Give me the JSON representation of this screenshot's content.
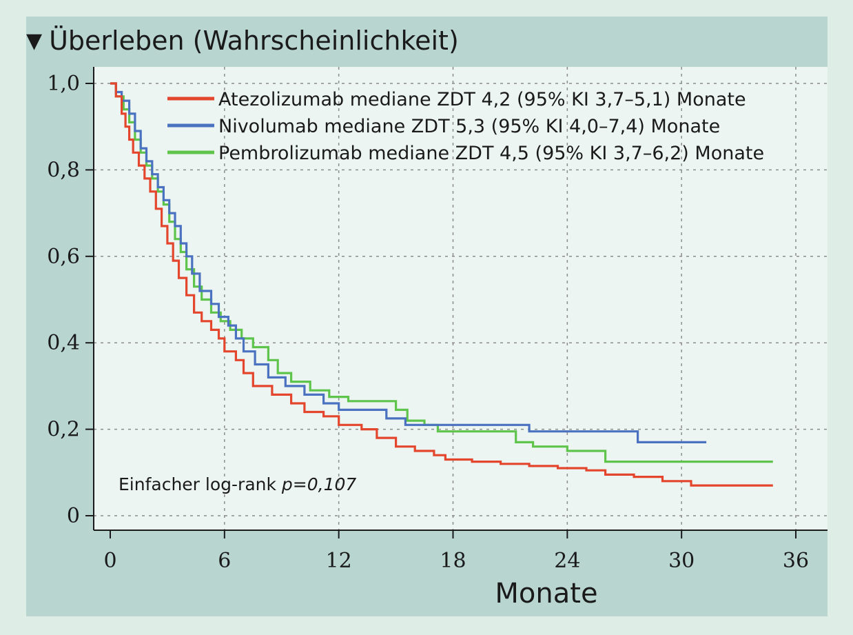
{
  "header": {
    "marker": "▼",
    "title": "Überleben (Wahrscheinlichkeit)"
  },
  "annotation": {
    "prefix": "Einfacher log-rank ",
    "p_value": "p=0,107"
  },
  "chart_data": {
    "type": "line",
    "step": true,
    "title": "Überleben (Wahrscheinlichkeit)",
    "xlabel": "Monate",
    "ylabel": "",
    "xlim": [
      0,
      37
    ],
    "ylim": [
      0,
      1
    ],
    "x_ticks": [
      0,
      6,
      12,
      18,
      24,
      30,
      36
    ],
    "x_tick_labels": [
      "0",
      "6",
      "12",
      "18",
      "24",
      "30",
      "36"
    ],
    "y_ticks": [
      0,
      0.2,
      0.4,
      0.6,
      0.8,
      1.0
    ],
    "y_tick_labels": [
      "0",
      "0,2",
      "0,4",
      "0,6",
      "0,8",
      "1,0"
    ],
    "grid": true,
    "legend_position": "top-right",
    "series": [
      {
        "name": "Atezolizumab mediane ZDT 4,2 (95% KI 3,7–5,1) Monate",
        "color": "#e4462d",
        "points": [
          [
            0,
            1.0
          ],
          [
            0.3,
            0.97
          ],
          [
            0.6,
            0.93
          ],
          [
            0.8,
            0.9
          ],
          [
            1.0,
            0.87
          ],
          [
            1.2,
            0.84
          ],
          [
            1.5,
            0.81
          ],
          [
            1.8,
            0.78
          ],
          [
            2.1,
            0.75
          ],
          [
            2.4,
            0.71
          ],
          [
            2.7,
            0.67
          ],
          [
            3.0,
            0.63
          ],
          [
            3.3,
            0.59
          ],
          [
            3.6,
            0.55
          ],
          [
            4.0,
            0.51
          ],
          [
            4.4,
            0.47
          ],
          [
            4.8,
            0.45
          ],
          [
            5.3,
            0.43
          ],
          [
            5.7,
            0.41
          ],
          [
            6.0,
            0.38
          ],
          [
            6.6,
            0.36
          ],
          [
            7.0,
            0.33
          ],
          [
            7.5,
            0.3
          ],
          [
            8.5,
            0.28
          ],
          [
            9.5,
            0.26
          ],
          [
            10.2,
            0.24
          ],
          [
            11.2,
            0.23
          ],
          [
            12.0,
            0.21
          ],
          [
            13.2,
            0.2
          ],
          [
            14.0,
            0.18
          ],
          [
            15.0,
            0.16
          ],
          [
            16.0,
            0.15
          ],
          [
            17.0,
            0.14
          ],
          [
            17.6,
            0.13
          ],
          [
            19.0,
            0.125
          ],
          [
            20.5,
            0.12
          ],
          [
            22.0,
            0.115
          ],
          [
            23.5,
            0.11
          ],
          [
            25.0,
            0.105
          ],
          [
            26.0,
            0.095
          ],
          [
            27.5,
            0.09
          ],
          [
            29.0,
            0.08
          ],
          [
            30.5,
            0.07
          ],
          [
            34.8,
            0.07
          ]
        ]
      },
      {
        "name": "Nivolumab mediane ZDT 5,3 (95% KI 4,0–7,4) Monate",
        "color": "#4a72c0",
        "points": [
          [
            0,
            1.0
          ],
          [
            0.3,
            0.98
          ],
          [
            0.6,
            0.96
          ],
          [
            1.0,
            0.93
          ],
          [
            1.3,
            0.89
          ],
          [
            1.6,
            0.85
          ],
          [
            1.9,
            0.82
          ],
          [
            2.2,
            0.79
          ],
          [
            2.5,
            0.76
          ],
          [
            2.8,
            0.73
          ],
          [
            3.1,
            0.7
          ],
          [
            3.4,
            0.67
          ],
          [
            3.7,
            0.63
          ],
          [
            4.0,
            0.6
          ],
          [
            4.3,
            0.56
          ],
          [
            4.7,
            0.52
          ],
          [
            5.3,
            0.49
          ],
          [
            5.7,
            0.46
          ],
          [
            6.2,
            0.44
          ],
          [
            6.6,
            0.41
          ],
          [
            7.0,
            0.38
          ],
          [
            7.6,
            0.35
          ],
          [
            8.3,
            0.32
          ],
          [
            9.2,
            0.3
          ],
          [
            10.2,
            0.28
          ],
          [
            11.2,
            0.26
          ],
          [
            12.0,
            0.245
          ],
          [
            13.5,
            0.245
          ],
          [
            14.5,
            0.225
          ],
          [
            15.5,
            0.21
          ],
          [
            17.0,
            0.21
          ],
          [
            19.0,
            0.21
          ],
          [
            22.0,
            0.195
          ],
          [
            24.5,
            0.195
          ],
          [
            27.7,
            0.17
          ],
          [
            31.3,
            0.17
          ]
        ]
      },
      {
        "name": "Pembrolizumab mediane ZDT 4,5 (95% KI 3,7–6,2) Monate",
        "color": "#5fc44c",
        "points": [
          [
            0,
            1.0
          ],
          [
            0.3,
            0.97
          ],
          [
            0.7,
            0.94
          ],
          [
            1.0,
            0.91
          ],
          [
            1.3,
            0.87
          ],
          [
            1.6,
            0.84
          ],
          [
            1.9,
            0.81
          ],
          [
            2.2,
            0.78
          ],
          [
            2.5,
            0.75
          ],
          [
            2.8,
            0.72
          ],
          [
            3.1,
            0.68
          ],
          [
            3.4,
            0.64
          ],
          [
            3.7,
            0.61
          ],
          [
            4.0,
            0.57
          ],
          [
            4.4,
            0.53
          ],
          [
            4.8,
            0.5
          ],
          [
            5.3,
            0.47
          ],
          [
            5.8,
            0.45
          ],
          [
            6.3,
            0.43
          ],
          [
            6.9,
            0.41
          ],
          [
            7.5,
            0.39
          ],
          [
            8.3,
            0.36
          ],
          [
            8.8,
            0.33
          ],
          [
            9.5,
            0.31
          ],
          [
            10.5,
            0.29
          ],
          [
            11.5,
            0.275
          ],
          [
            12.5,
            0.265
          ],
          [
            15.0,
            0.245
          ],
          [
            15.6,
            0.22
          ],
          [
            16.5,
            0.21
          ],
          [
            17.2,
            0.195
          ],
          [
            20.0,
            0.195
          ],
          [
            21.3,
            0.17
          ],
          [
            22.2,
            0.16
          ],
          [
            24.0,
            0.15
          ],
          [
            26.0,
            0.125
          ],
          [
            30.0,
            0.125
          ],
          [
            34.8,
            0.125
          ]
        ]
      }
    ]
  }
}
